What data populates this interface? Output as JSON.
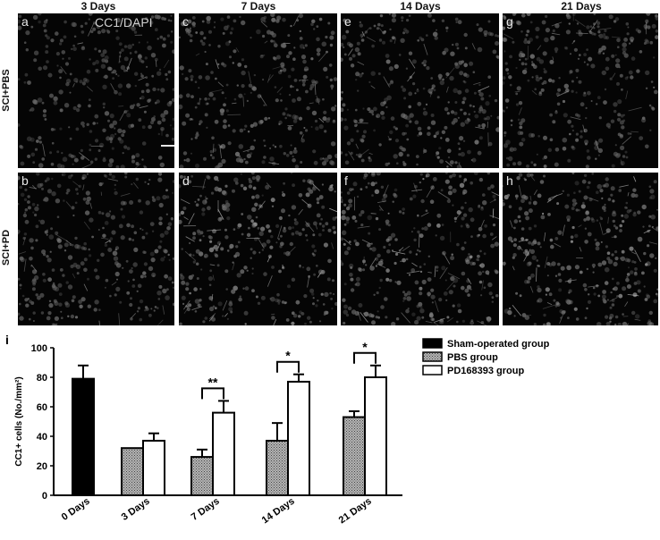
{
  "columns": [
    "3 Days",
    "7 Days",
    "14 Days",
    "21 Days"
  ],
  "rows": [
    "SCI+PBS",
    "SCI+PD"
  ],
  "panels": {
    "a": "a",
    "b": "b",
    "c": "c",
    "d": "d",
    "e": "e",
    "f": "f",
    "g": "g",
    "h": "h"
  },
  "stain": "CC1/DAPI",
  "chart_panel_letter": "i",
  "chart_data": {
    "type": "bar",
    "ylabel": "CC1+ cells (No./mm²)",
    "ylim": [
      0,
      100
    ],
    "yticks": [
      0,
      20,
      40,
      60,
      80,
      100
    ],
    "categories": [
      "0 Days",
      "3 Days",
      "7 Days",
      "14 Days",
      "21 Days"
    ],
    "series": [
      {
        "name": "Sham-operated group",
        "values": [
          79,
          null,
          null,
          null,
          null
        ],
        "errors": [
          9,
          null,
          null,
          null,
          null
        ],
        "color": "#000000"
      },
      {
        "name": "PBS group",
        "values": [
          null,
          32,
          26,
          37,
          53
        ],
        "errors": [
          null,
          0,
          5,
          12,
          4
        ],
        "color": "#9a9a9a"
      },
      {
        "name": "PD168393 group",
        "values": [
          null,
          37,
          56,
          77,
          80
        ],
        "errors": [
          null,
          5,
          8,
          5,
          8
        ],
        "color": "#ffffff"
      }
    ],
    "significance": [
      {
        "category": "7 Days",
        "label": "**"
      },
      {
        "category": "14 Days",
        "label": "*"
      },
      {
        "category": "21 Days",
        "label": "*"
      }
    ],
    "legend_position": "top-right"
  }
}
